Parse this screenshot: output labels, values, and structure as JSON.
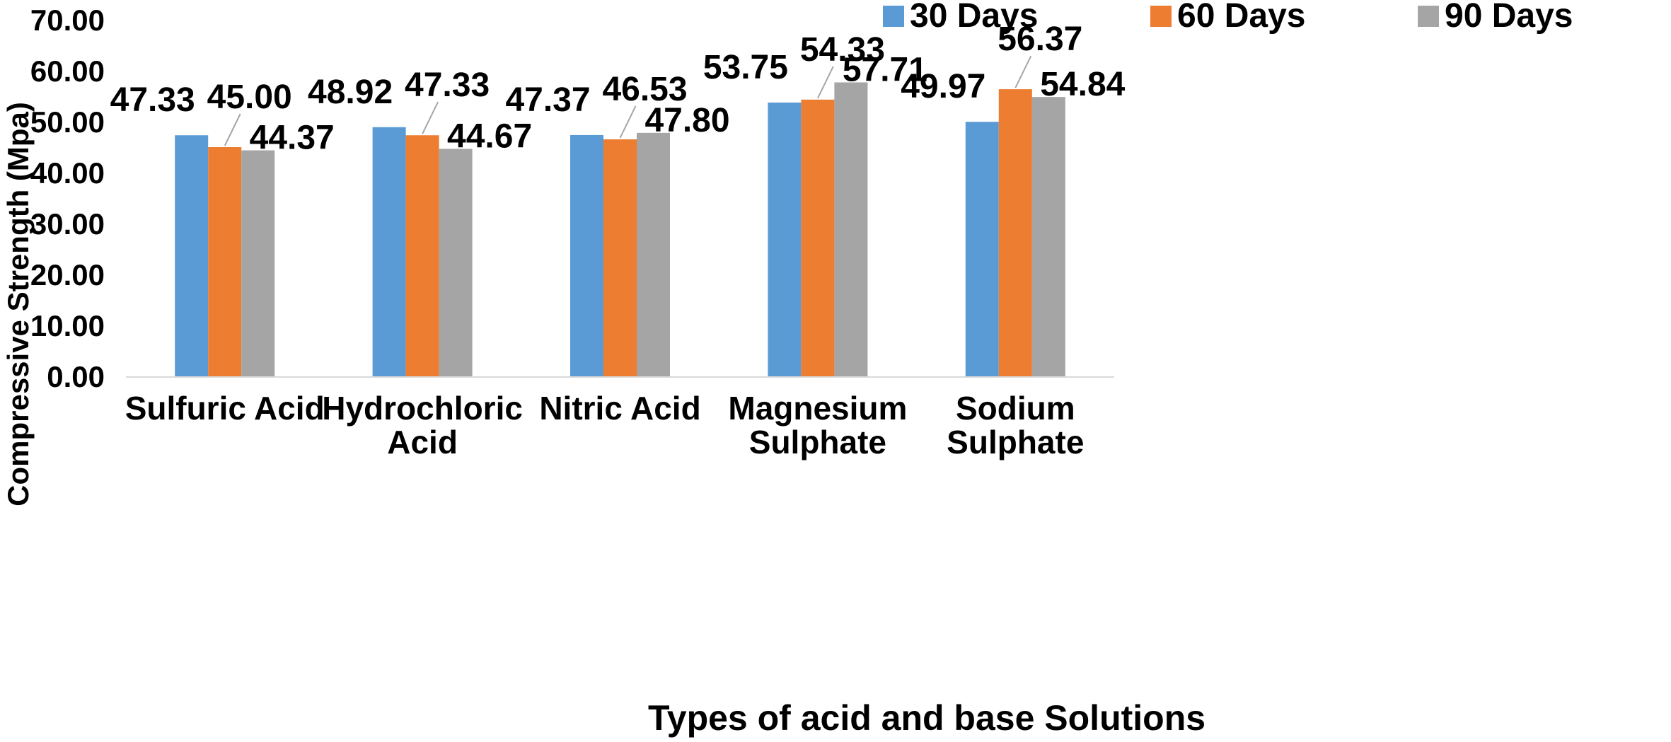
{
  "chart_data": {
    "type": "bar",
    "title": "",
    "xlabel": "Types of acid and base Solutions",
    "ylabel": "Compressive Strength (Mpa)",
    "ylim": [
      0,
      70
    ],
    "yticks": [
      "0.00",
      "10.00",
      "20.00",
      "30.00",
      "40.00",
      "50.00",
      "60.00",
      "70.00"
    ],
    "grid": false,
    "legend_position": "top-right",
    "categories": [
      [
        "Sulfuric Acid"
      ],
      [
        "Hydrochloric",
        "Acid"
      ],
      [
        "Nitric Acid"
      ],
      [
        "Magnesium",
        "Sulphate"
      ],
      [
        "Sodium",
        "Sulphate"
      ]
    ],
    "series": [
      {
        "name": "30 Days",
        "color": "#5B9BD5",
        "values": [
          47.33,
          48.92,
          47.37,
          53.75,
          49.97
        ],
        "labels": [
          "47.33",
          "48.92",
          "47.37",
          "53.75",
          "49.97"
        ]
      },
      {
        "name": "60 Days",
        "color": "#ED7D31",
        "values": [
          45.0,
          47.33,
          46.53,
          54.33,
          56.37
        ],
        "labels": [
          "45.00",
          "47.33",
          "46.53",
          "54.33",
          "56.37"
        ]
      },
      {
        "name": "90 Days",
        "color": "#A5A5A5",
        "values": [
          44.37,
          44.67,
          47.8,
          57.71,
          54.84
        ],
        "labels": [
          "44.37",
          "44.67",
          "47.80",
          "57.71",
          "54.84"
        ]
      }
    ]
  }
}
